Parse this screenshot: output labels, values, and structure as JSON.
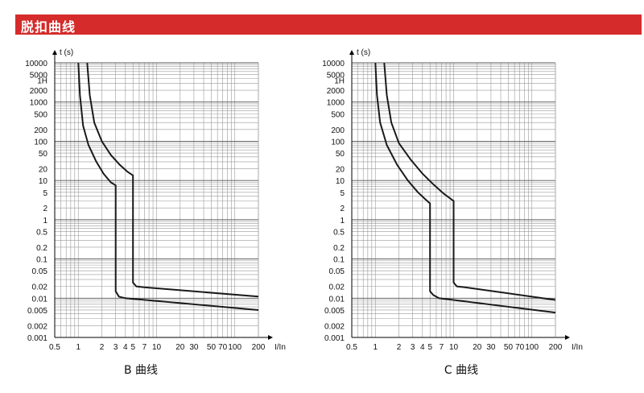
{
  "header": {
    "title": "脱扣曲线"
  },
  "chart_data": [
    {
      "type": "line",
      "caption": "B 曲线",
      "xlabel": "I/In",
      "ylabel": "t (s)",
      "x_scale": "log",
      "y_scale": "log",
      "xlim": [
        0.5,
        200
      ],
      "ylim": [
        0.001,
        10000
      ],
      "x_ticks": [
        {
          "v": 0.5,
          "label": "0.5"
        },
        {
          "v": 1,
          "label": "1"
        },
        {
          "v": 2,
          "label": "2"
        },
        {
          "v": 3,
          "label": "3"
        },
        {
          "v": 4,
          "label": "4"
        },
        {
          "v": 5,
          "label": "5"
        },
        {
          "v": 7,
          "label": "7"
        },
        {
          "v": 10,
          "label": "10"
        },
        {
          "v": 20,
          "label": "20"
        },
        {
          "v": 30,
          "label": "30"
        },
        {
          "v": 50,
          "label": "50"
        },
        {
          "v": 70,
          "label": "70"
        },
        {
          "v": 100,
          "label": "100"
        },
        {
          "v": 200,
          "label": "200"
        }
      ],
      "y_ticks": [
        {
          "v": 10000,
          "label": "10000"
        },
        {
          "v": 5000,
          "label": "5000"
        },
        {
          "v": 3600,
          "label": "1H"
        },
        {
          "v": 2000,
          "label": "2000"
        },
        {
          "v": 1000,
          "label": "1000"
        },
        {
          "v": 500,
          "label": "500"
        },
        {
          "v": 200,
          "label": "200"
        },
        {
          "v": 100,
          "label": "100"
        },
        {
          "v": 50,
          "label": "50"
        },
        {
          "v": 20,
          "label": "20"
        },
        {
          "v": 10,
          "label": "10"
        },
        {
          "v": 5,
          "label": "5"
        },
        {
          "v": 2,
          "label": "2"
        },
        {
          "v": 1,
          "label": "1"
        },
        {
          "v": 0.5,
          "label": "0.5"
        },
        {
          "v": 0.2,
          "label": "0.2"
        },
        {
          "v": 0.1,
          "label": "0.1"
        },
        {
          "v": 0.05,
          "label": "0.05"
        },
        {
          "v": 0.02,
          "label": "0.02"
        },
        {
          "v": 0.01,
          "label": "0.01"
        },
        {
          "v": 0.005,
          "label": "0.005"
        },
        {
          "v": 0.002,
          "label": "0.002"
        },
        {
          "v": 0.001,
          "label": "0.001"
        }
      ],
      "series": [
        {
          "points": [
            [
              1.0,
              10000
            ],
            [
              1.05,
              1500
            ],
            [
              1.15,
              250
            ],
            [
              1.35,
              80
            ],
            [
              1.7,
              30
            ],
            [
              2.1,
              15
            ],
            [
              2.6,
              9
            ],
            [
              3,
              7.5
            ],
            [
              3,
              0.015
            ],
            [
              3.3,
              0.011
            ],
            [
              4,
              0.01
            ],
            [
              200,
              0.005
            ]
          ]
        },
        {
          "points": [
            [
              1.3,
              10000
            ],
            [
              1.4,
              1500
            ],
            [
              1.6,
              300
            ],
            [
              2.0,
              100
            ],
            [
              2.6,
              45
            ],
            [
              3.4,
              25
            ],
            [
              4.2,
              17
            ],
            [
              5,
              13.5
            ],
            [
              5,
              0.025
            ],
            [
              5.5,
              0.02
            ],
            [
              7,
              0.019
            ],
            [
              200,
              0.011
            ]
          ]
        }
      ]
    },
    {
      "type": "line",
      "caption": "C 曲线",
      "xlabel": "I/In",
      "ylabel": "t (s)",
      "x_scale": "log",
      "y_scale": "log",
      "xlim": [
        0.5,
        200
      ],
      "ylim": [
        0.001,
        10000
      ],
      "x_ticks": [
        {
          "v": 0.5,
          "label": "0.5"
        },
        {
          "v": 1,
          "label": "1"
        },
        {
          "v": 2,
          "label": "2"
        },
        {
          "v": 3,
          "label": "3"
        },
        {
          "v": 4,
          "label": "4"
        },
        {
          "v": 5,
          "label": "5"
        },
        {
          "v": 7,
          "label": "7"
        },
        {
          "v": 10,
          "label": "10"
        },
        {
          "v": 20,
          "label": "20"
        },
        {
          "v": 30,
          "label": "30"
        },
        {
          "v": 50,
          "label": "50"
        },
        {
          "v": 70,
          "label": "70"
        },
        {
          "v": 100,
          "label": "100"
        },
        {
          "v": 200,
          "label": "200"
        }
      ],
      "y_ticks": [
        {
          "v": 10000,
          "label": "10000"
        },
        {
          "v": 5000,
          "label": "5000"
        },
        {
          "v": 3600,
          "label": "1H"
        },
        {
          "v": 2000,
          "label": "2000"
        },
        {
          "v": 1000,
          "label": "1000"
        },
        {
          "v": 500,
          "label": "500"
        },
        {
          "v": 200,
          "label": "200"
        },
        {
          "v": 100,
          "label": "100"
        },
        {
          "v": 50,
          "label": "50"
        },
        {
          "v": 20,
          "label": "20"
        },
        {
          "v": 10,
          "label": "10"
        },
        {
          "v": 5,
          "label": "5"
        },
        {
          "v": 2,
          "label": "2"
        },
        {
          "v": 1,
          "label": "1"
        },
        {
          "v": 0.5,
          "label": "0.5"
        },
        {
          "v": 0.2,
          "label": "0.2"
        },
        {
          "v": 0.1,
          "label": "0.1"
        },
        {
          "v": 0.05,
          "label": "0.05"
        },
        {
          "v": 0.02,
          "label": "0.02"
        },
        {
          "v": 0.01,
          "label": "0.01"
        },
        {
          "v": 0.005,
          "label": "0.005"
        },
        {
          "v": 0.002,
          "label": "0.002"
        },
        {
          "v": 0.001,
          "label": "0.001"
        }
      ],
      "series": [
        {
          "points": [
            [
              1.0,
              10000
            ],
            [
              1.05,
              1500
            ],
            [
              1.15,
              300
            ],
            [
              1.4,
              80
            ],
            [
              1.9,
              25
            ],
            [
              2.6,
              10
            ],
            [
              3.5,
              5
            ],
            [
              4.3,
              3.4
            ],
            [
              5,
              2.6
            ],
            [
              5,
              0.015
            ],
            [
              5.5,
              0.012
            ],
            [
              6.5,
              0.01
            ],
            [
              200,
              0.0043
            ]
          ]
        },
        {
          "points": [
            [
              1.3,
              10000
            ],
            [
              1.4,
              1500
            ],
            [
              1.6,
              300
            ],
            [
              2.0,
              90
            ],
            [
              2.8,
              35
            ],
            [
              4,
              15
            ],
            [
              5.5,
              8
            ],
            [
              7.5,
              4.6
            ],
            [
              10,
              3
            ],
            [
              10,
              0.025
            ],
            [
              11,
              0.02
            ],
            [
              14,
              0.019
            ],
            [
              200,
              0.009
            ]
          ]
        }
      ]
    }
  ]
}
